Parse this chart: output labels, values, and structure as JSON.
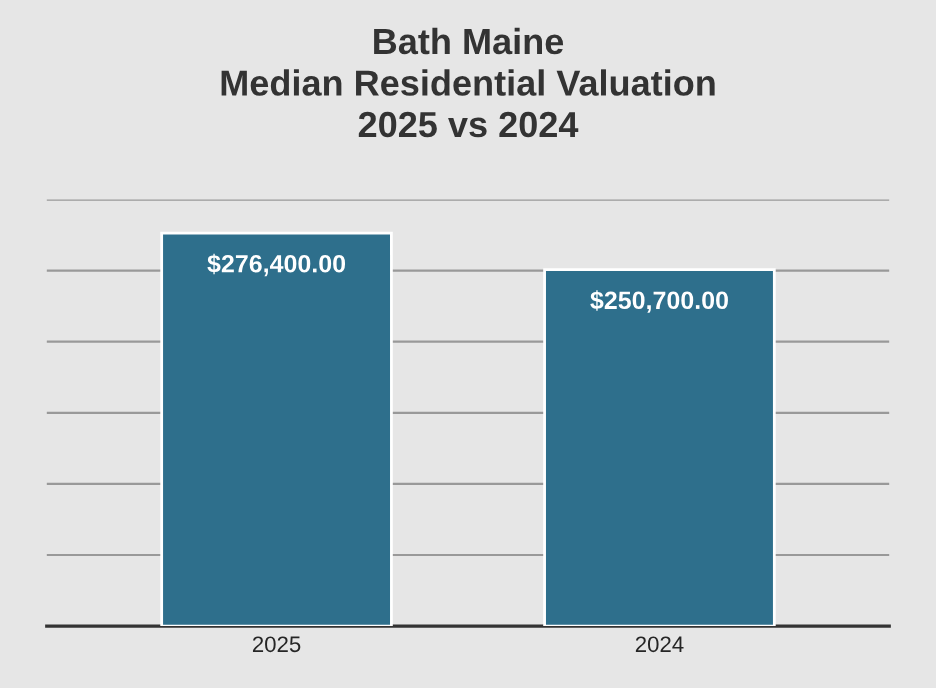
{
  "chart_data": {
    "type": "bar",
    "title": "Bath Maine\nMedian Residential Valuation\n2025 vs 2024",
    "categories": [
      "2025",
      "2024"
    ],
    "values": [
      276400,
      250700
    ],
    "color": "#2e6f8c",
    "value_labels": [
      "$276,400.00",
      "$250,700.00"
    ],
    "ylim": [
      0,
      300000
    ],
    "yticks": [
      {
        "value": 0,
        "label": null
      },
      {
        "value": 50000,
        "label": null
      },
      {
        "value": 100000,
        "label": null
      },
      {
        "value": 150000,
        "label": null
      },
      {
        "value": 200000,
        "label": null
      },
      {
        "value": 250000,
        "label": null
      },
      {
        "value": 300000,
        "label": null
      }
    ],
    "tick_labels": "x",
    "grid": "y",
    "legend": false
  }
}
